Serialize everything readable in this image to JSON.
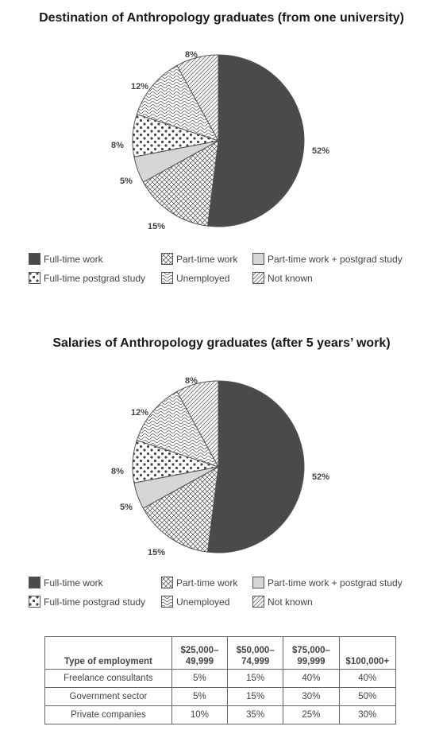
{
  "chart_data": [
    {
      "type": "pie",
      "title": "Destination of Anthropology graduates (from one university)",
      "categories": [
        "Full-time work",
        "Part-time work",
        "Part-time work + postgrad study",
        "Full-time postgrad study",
        "Unemployed",
        "Not known"
      ],
      "values": [
        52,
        15,
        5,
        8,
        12,
        8
      ],
      "value_labels": [
        "52%",
        "15%",
        "5%",
        "8%",
        "12%",
        "8%"
      ],
      "legend": "bottom"
    },
    {
      "type": "pie",
      "title": "Salaries of Anthropology graduates (after 5 years’ work)",
      "categories": [
        "Full-time work",
        "Part-time work",
        "Part-time work + postgrad study",
        "Full-time postgrad study",
        "Unemployed",
        "Not known"
      ],
      "values": [
        52,
        15,
        5,
        8,
        12,
        8
      ],
      "value_labels": [
        "52%",
        "15%",
        "5%",
        "8%",
        "12%",
        "8%"
      ],
      "legend": "bottom"
    },
    {
      "type": "table",
      "columns": [
        "Type of employment",
        "$25,000–\n49,999",
        "$50,000–\n74,999",
        "$75,000–\n99,999",
        "$100,000+"
      ],
      "rows": [
        [
          "Freelance consultants",
          "5%",
          "15%",
          "40%",
          "40%"
        ],
        [
          "Government sector",
          "5%",
          "15%",
          "30%",
          "50%"
        ],
        [
          "Private companies",
          "10%",
          "35%",
          "25%",
          "30%"
        ]
      ]
    }
  ],
  "colors": {
    "full_time_work": "#4a4a4a",
    "part_time_postgrad": "#d6d6d6",
    "line": "#555555"
  },
  "patterns": [
    "solid-dark",
    "crosshatch",
    "solid-light",
    "dots",
    "wavy",
    "diagonal-lines"
  ]
}
